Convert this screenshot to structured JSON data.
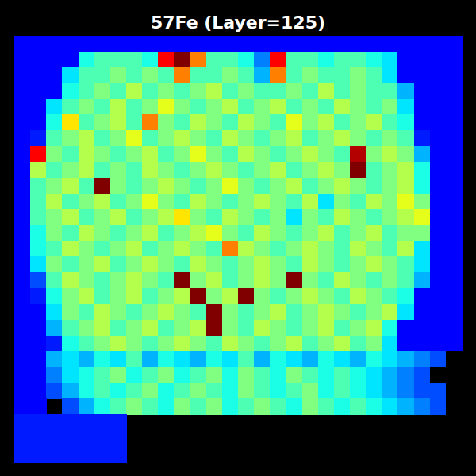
{
  "chart_data": {
    "type": "heatmap",
    "title": "57Fe (Layer=125)",
    "zlim": [
      0,
      4
    ],
    "tick_labels": false,
    "cells": [
      [
        0.5,
        0.5,
        0.5,
        0.5,
        0.5,
        0.5,
        0.5,
        0.5,
        0.5,
        0.5,
        0.5,
        0.5,
        0.5,
        0.5,
        0.5,
        0.5,
        0.5,
        0.5,
        0.5,
        0.5,
        0.5,
        0.5,
        0.5,
        0.5,
        0.5,
        0.5,
        0.5,
        0.5
      ],
      [
        0.5,
        0.5,
        0.5,
        0.5,
        1.6,
        1.8,
        1.8,
        1.8,
        1.6,
        3.5,
        4,
        3,
        1.8,
        1.8,
        1.6,
        1.0,
        3.5,
        1.8,
        1.8,
        1.6,
        1.8,
        1.8,
        1.6,
        1.4,
        0.5,
        0.5,
        0.5,
        0.5
      ],
      [
        0.5,
        0.5,
        0.5,
        1.4,
        1.8,
        1.8,
        2,
        1.8,
        2,
        1.8,
        3,
        1.8,
        1.8,
        2,
        1.8,
        1.2,
        3,
        1.8,
        2,
        1.8,
        1.8,
        2,
        1.8,
        1.4,
        0.5,
        0.5,
        0.5,
        0.5
      ],
      [
        0.5,
        0.5,
        0.5,
        1.6,
        1.8,
        2,
        1.8,
        2.2,
        1.8,
        2,
        1.8,
        2,
        2.2,
        1.8,
        2,
        1.8,
        1.8,
        2,
        1.8,
        2.2,
        1.8,
        2,
        1.8,
        1.8,
        1.2,
        0.5,
        0.5,
        0.5
      ],
      [
        0.5,
        0.5,
        1.4,
        1.8,
        2,
        1.8,
        2.2,
        1.8,
        2,
        2.4,
        2,
        1.8,
        2,
        2.2,
        1.8,
        2,
        2.2,
        1.8,
        2,
        1.8,
        2.2,
        2,
        1.8,
        2,
        1.4,
        0.5,
        0.5,
        0.5
      ],
      [
        0.5,
        0.5,
        1.6,
        2.6,
        1.8,
        2,
        2.2,
        1.8,
        3,
        2,
        1.8,
        2.2,
        2,
        1.8,
        2.2,
        2,
        1.8,
        2.4,
        2,
        2.2,
        1.8,
        2,
        2.2,
        1.8,
        1.6,
        0.5,
        0.5,
        0.5
      ],
      [
        0.5,
        0.6,
        1.8,
        2,
        2.2,
        1.8,
        2,
        2.4,
        1.8,
        2,
        2.2,
        2,
        1.8,
        2.2,
        2,
        1.8,
        2,
        2.2,
        1.8,
        2,
        2.2,
        2,
        1.8,
        2,
        1.8,
        0.6,
        0.5,
        0.5
      ],
      [
        0.5,
        3.5,
        2,
        1.8,
        2.2,
        2,
        1.8,
        2,
        2.2,
        1.8,
        2,
        2.4,
        2,
        1.8,
        2.2,
        2,
        1.8,
        2,
        2.2,
        2,
        1.8,
        3.8,
        2,
        2.2,
        2,
        1.2,
        0.5,
        0.5
      ],
      [
        0.5,
        2.2,
        1.8,
        2,
        2.2,
        1.8,
        2,
        1.8,
        2.2,
        2,
        1.8,
        2,
        2.2,
        2,
        1.8,
        2,
        2.2,
        1.8,
        2,
        2.2,
        2,
        4,
        1.8,
        2,
        2.2,
        1.6,
        0.5,
        0.5
      ],
      [
        0.5,
        1.8,
        2,
        2.2,
        1.8,
        4,
        2,
        1.8,
        2,
        2.2,
        2,
        1.8,
        2,
        2.4,
        2,
        1.8,
        2,
        2.2,
        1.8,
        2,
        2.2,
        2,
        1.8,
        2,
        2.2,
        1.6,
        0.5,
        0.5
      ],
      [
        0.5,
        1.8,
        2.2,
        1.8,
        2,
        2.2,
        1.8,
        2,
        2.4,
        2,
        1.8,
        2.2,
        2,
        1.8,
        2,
        2.2,
        2,
        1.8,
        2.2,
        1.4,
        2,
        1.8,
        2.2,
        2,
        2.4,
        2,
        0.5,
        0.5
      ],
      [
        0.5,
        1.8,
        2,
        2.2,
        1.8,
        2,
        2.2,
        1.8,
        2,
        2.2,
        2.6,
        2,
        1.8,
        2.2,
        2,
        1.8,
        2,
        1.4,
        2,
        1.8,
        2.2,
        2,
        1.8,
        2,
        2.2,
        2.4,
        0.5,
        0.5
      ],
      [
        0.5,
        1.6,
        2,
        1.8,
        2.2,
        2,
        1.8,
        2,
        2.2,
        1.8,
        2,
        2.2,
        2.4,
        2,
        1.8,
        2.2,
        2,
        1.8,
        2,
        2.2,
        1.8,
        2,
        2.2,
        1.8,
        2,
        2,
        0.5,
        0.5
      ],
      [
        0.5,
        1.6,
        1.8,
        2.2,
        2,
        1.8,
        2,
        2.2,
        1.8,
        2,
        2.2,
        2,
        1.8,
        3,
        2.2,
        2,
        1.8,
        2,
        2.2,
        2,
        1.8,
        2.2,
        2,
        1.8,
        2.2,
        1.4,
        0.5,
        0.5
      ],
      [
        0.5,
        1.4,
        2,
        1.8,
        2,
        2.2,
        1.8,
        2,
        2.2,
        2,
        1.8,
        2.2,
        2,
        1.8,
        2,
        2.2,
        2,
        1.8,
        2.2,
        2,
        1.8,
        2,
        2.2,
        2,
        1.8,
        1.4,
        0.5,
        0.5
      ],
      [
        0.5,
        0.8,
        1.8,
        2.2,
        2,
        1.8,
        2,
        2.2,
        2,
        1.8,
        4,
        2,
        2.2,
        1.8,
        2,
        2.2,
        2,
        4,
        2,
        1.8,
        2.2,
        2,
        1.8,
        2,
        1.8,
        1.2,
        0.5,
        0.5
      ],
      [
        0.5,
        0.6,
        1.6,
        2,
        2.2,
        1.8,
        2,
        2.2,
        1.8,
        2,
        2.2,
        4,
        2,
        2.2,
        4,
        2,
        1.8,
        2,
        2.2,
        2,
        1.8,
        2.2,
        2,
        1.8,
        1.6,
        0.5,
        0.5,
        0.5
      ],
      [
        0.5,
        0.5,
        1.4,
        2,
        1.8,
        2.2,
        2,
        1.8,
        2,
        2.2,
        2,
        1.8,
        4,
        2,
        1.8,
        2,
        2.2,
        1.8,
        2,
        2.2,
        2,
        1.8,
        2,
        2.2,
        1.4,
        0.5,
        0.5,
        0.5
      ],
      [
        0.5,
        0.5,
        1.2,
        1.8,
        2,
        2.2,
        1.8,
        2,
        2.2,
        1.8,
        2,
        2.2,
        4,
        2,
        1.8,
        2.2,
        2,
        1.8,
        2,
        2.2,
        1.8,
        2,
        2.2,
        1.6,
        0.5,
        0.5,
        0.5,
        0.5
      ],
      [
        0.5,
        0.5,
        0.6,
        1.6,
        1.8,
        2,
        2.2,
        2,
        1.8,
        2,
        2.2,
        2,
        1.8,
        2.2,
        2,
        1.8,
        2,
        2.2,
        1.8,
        2,
        2.2,
        1.8,
        2,
        1.4,
        0.5,
        0.5,
        0.5,
        0.5
      ],
      [
        0.5,
        0.5,
        1.2,
        1.4,
        1.2,
        1.6,
        1.4,
        1.8,
        1.2,
        1.6,
        1.4,
        1.2,
        1.6,
        1.4,
        1.8,
        1.2,
        1.6,
        1.4,
        1.2,
        1.6,
        1.4,
        1.2,
        1.6,
        1.4,
        1.2,
        1.0,
        0.8,
        null
      ],
      [
        0.5,
        0.5,
        1.0,
        1.4,
        1.6,
        1.8,
        2,
        1.6,
        1.8,
        2,
        1.6,
        1.8,
        2,
        1.6,
        2,
        1.8,
        1.6,
        2,
        1.8,
        1.6,
        1.8,
        1.6,
        1.4,
        1.2,
        1.0,
        0.8,
        null,
        null
      ],
      [
        0.5,
        0.5,
        0.8,
        1.2,
        1.6,
        1.8,
        1.6,
        1.8,
        2,
        1.6,
        1.8,
        2,
        1.8,
        1.6,
        2,
        1.8,
        1.6,
        1.8,
        2,
        1.6,
        1.8,
        1.6,
        1.4,
        1.2,
        1.0,
        0.8,
        0.8,
        null
      ],
      [
        0.5,
        0.5,
        null,
        0.8,
        1.2,
        1.6,
        1.8,
        2,
        1.8,
        1.6,
        2,
        1.8,
        2,
        1.6,
        1.8,
        2,
        1.8,
        1.6,
        2,
        1.8,
        1.6,
        1.8,
        1.6,
        1.4,
        1.2,
        1.0,
        0.8,
        null
      ],
      [
        0.6,
        0.6,
        0.6,
        0.6,
        0.6,
        0.6,
        0.6,
        null,
        null,
        null,
        null,
        null,
        null,
        null,
        null,
        null,
        null,
        null,
        null,
        null,
        null,
        null,
        null,
        null,
        null,
        null,
        null,
        null
      ],
      [
        0.6,
        0.6,
        0.6,
        0.6,
        0.6,
        0.6,
        0.6,
        null,
        null,
        null,
        null,
        null,
        null,
        null,
        null,
        null,
        null,
        null,
        null,
        null,
        null,
        null,
        null,
        null,
        null,
        null,
        null,
        null
      ],
      [
        0.6,
        0.6,
        0.6,
        0.6,
        0.6,
        0.6,
        0.6,
        null,
        null,
        null,
        null,
        null,
        null,
        null,
        null,
        null,
        null,
        null,
        null,
        null,
        null,
        null,
        null,
        null,
        null,
        null,
        null,
        null
      ]
    ]
  }
}
